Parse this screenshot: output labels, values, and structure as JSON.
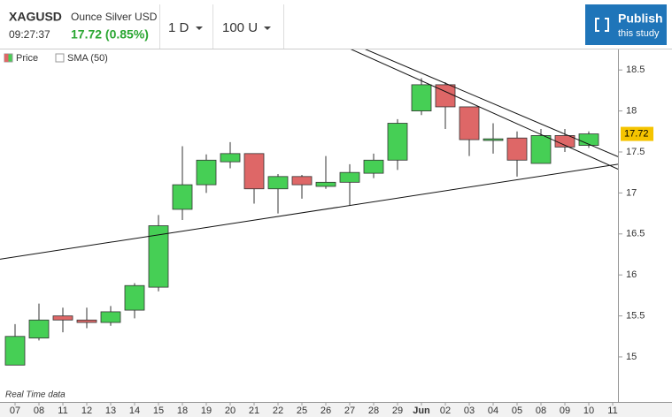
{
  "header": {
    "symbol": "XAGUSD",
    "name": "Ounce Silver USD",
    "time": "09:27:37",
    "quote": "17.72 (0.85%)",
    "interval": "1 D",
    "units": "100 U",
    "publish": "Publish",
    "publish_sub": "this study"
  },
  "chart_data": {
    "type": "candlestick",
    "categories": [
      "07",
      "08",
      "11",
      "12",
      "13",
      "14",
      "15",
      "18",
      "19",
      "20",
      "21",
      "22",
      "25",
      "26",
      "27",
      "28",
      "29",
      "Jun",
      "02",
      "03",
      "04",
      "05",
      "08",
      "09",
      "10",
      "11"
    ],
    "series": [
      {
        "name": "Price",
        "up_color": "#46cf55",
        "down_color": "#de6767",
        "open": [
          14.9,
          15.23,
          15.5,
          15.45,
          15.42,
          15.57,
          15.85,
          16.8,
          17.1,
          17.38,
          17.48,
          17.05,
          17.2,
          17.08,
          17.13,
          17.24,
          17.4,
          18.0,
          18.32,
          18.05,
          17.64,
          17.67,
          17.36,
          17.7,
          17.58,
          null
        ],
        "high": [
          15.4,
          15.65,
          15.6,
          15.6,
          15.62,
          15.9,
          16.73,
          17.57,
          17.47,
          17.62,
          17.48,
          17.23,
          17.22,
          17.45,
          17.35,
          17.48,
          17.9,
          18.4,
          18.35,
          18.05,
          17.85,
          17.75,
          17.78,
          17.78,
          17.75,
          null
        ],
        "low": [
          14.9,
          15.2,
          15.3,
          15.35,
          15.38,
          15.47,
          15.8,
          16.67,
          17.0,
          17.3,
          16.87,
          16.75,
          16.93,
          17.05,
          16.85,
          17.18,
          17.28,
          17.95,
          17.78,
          17.45,
          17.48,
          17.2,
          17.36,
          17.5,
          17.55,
          null
        ],
        "close": [
          15.25,
          15.45,
          15.45,
          15.42,
          15.55,
          15.87,
          16.6,
          17.1,
          17.4,
          17.48,
          17.05,
          17.2,
          17.1,
          17.13,
          17.25,
          17.4,
          17.85,
          18.32,
          18.05,
          17.65,
          17.66,
          17.4,
          17.7,
          17.56,
          17.72,
          null
        ]
      },
      {
        "name": "SMA (50)"
      }
    ],
    "trendlines": [
      {
        "points": [
          [
            0,
            16.22
          ],
          [
            25,
            17.34
          ]
        ]
      },
      {
        "points": [
          [
            14,
            18.76
          ],
          [
            25,
            17.32
          ]
        ]
      },
      {
        "points": [
          [
            15,
            18.71
          ],
          [
            25,
            17.47
          ]
        ]
      }
    ],
    "last_price": 17.72,
    "ylim": [
      14.45,
      18.75
    ],
    "yticks": [
      15,
      15.5,
      16,
      16.5,
      17,
      17.5,
      18,
      18.5
    ],
    "footnote": "Real Time data"
  }
}
